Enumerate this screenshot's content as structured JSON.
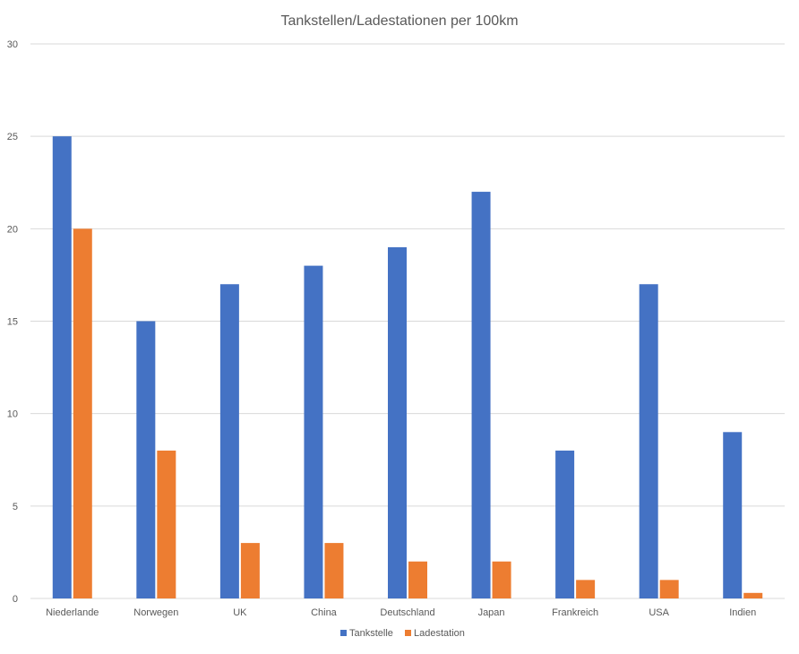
{
  "chart_data": {
    "type": "bar",
    "title": "Tankstellen/Ladestationen per 100km",
    "xlabel": "",
    "ylabel": "",
    "categories": [
      "Niederlande",
      "Norwegen",
      "UK",
      "China",
      "Deutschland",
      "Japan",
      "Frankreich",
      "USA",
      "Indien"
    ],
    "series": [
      {
        "name": "Tankstelle",
        "color": "#4472C4",
        "values": [
          25,
          15,
          17,
          18,
          19,
          22,
          8,
          17,
          9
        ]
      },
      {
        "name": "Ladestation",
        "color": "#ED7D31",
        "values": [
          20,
          8,
          3,
          3,
          2,
          2,
          1,
          1,
          0.3
        ]
      }
    ],
    "ylim": [
      0,
      30
    ],
    "yticks": [
      "0",
      "5",
      "10",
      "15",
      "20",
      "25",
      "30"
    ],
    "grid": true,
    "legend_position": "bottom"
  }
}
